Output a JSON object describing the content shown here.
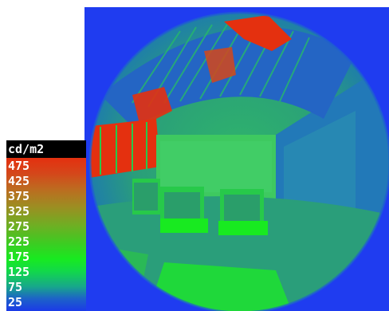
{
  "legend": {
    "unit": "cd/m2",
    "labels": [
      "475",
      "425",
      "375",
      "325",
      "275",
      "225",
      "175",
      "125",
      "75",
      "25"
    ]
  },
  "colors": {
    "background_blue": "#1f3cf0",
    "low": "#1b3ae8",
    "mid": "#18ea20",
    "high": "#e4300f"
  },
  "icons": [
    "fisheye-luminance-image"
  ]
}
